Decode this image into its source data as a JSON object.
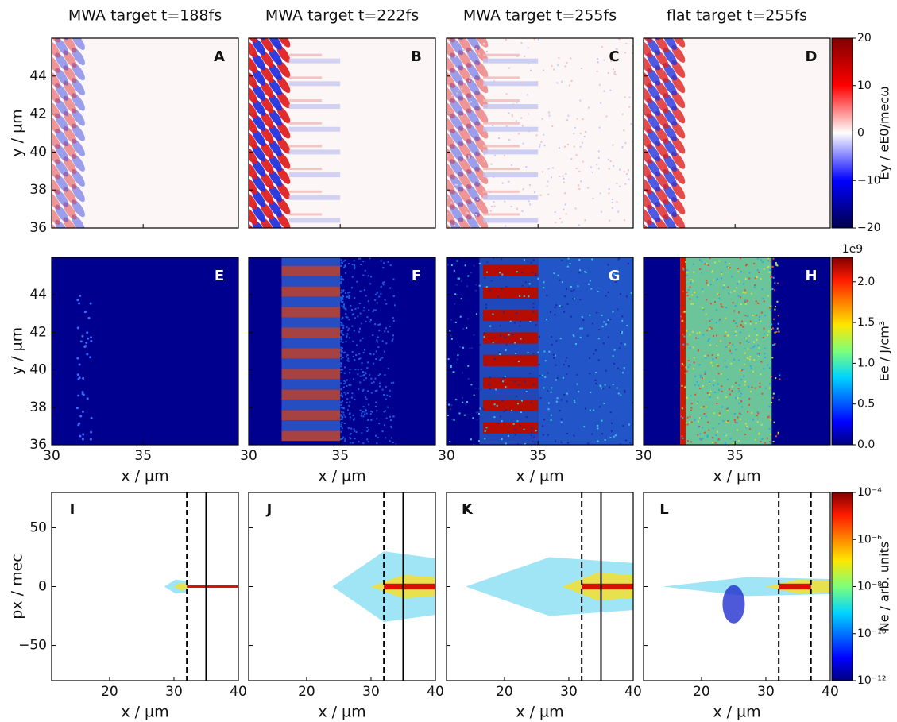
{
  "chart_data": [
    {
      "type": "field-map",
      "ylabel": "y / µm",
      "colorbar_label": "Ey / eE0/mecω",
      "colormap": "seismic",
      "colorbar_lim": [
        -20,
        20
      ],
      "colorbar_ticks": [
        {
          "value": -20,
          "label": "−20"
        },
        {
          "value": -10,
          "label": "−10"
        },
        0,
        10,
        20
      ],
      "xlim": [
        30,
        40.2
      ],
      "xticks": [
        30,
        35
      ],
      "xtick_labels": false,
      "ylim": [
        36,
        46
      ],
      "yticks": [
        36,
        38,
        40,
        42,
        44
      ],
      "panels": [
        {
          "title": "MWA target t=188fs",
          "label": "A"
        },
        {
          "title": "MWA target t=222fs",
          "label": "B"
        },
        {
          "title": "MWA target t=255fs",
          "label": "C"
        },
        {
          "title": "flat target t=255fs",
          "label": "D"
        }
      ]
    },
    {
      "type": "energy-map",
      "ylabel": "y / µm",
      "xlabel": "x / µm",
      "colorbar_label": "Ee / J/cm³",
      "colormap": "jet",
      "colorbar_offset": "1e9",
      "colorbar_lim": [
        0,
        2.3
      ],
      "colorbar_ticks": [
        {
          "value": 0,
          "label": "0.0"
        },
        {
          "value": 0.5,
          "label": "0.5"
        },
        {
          "value": 1,
          "label": "1.0"
        },
        {
          "value": 1.5,
          "label": "1.5"
        },
        {
          "value": 2,
          "label": "2.0"
        }
      ],
      "xlim": [
        30,
        40.2
      ],
      "xticks": [
        30,
        35
      ],
      "xtick_labels": true,
      "ylim": [
        36,
        46
      ],
      "yticks": [
        36,
        38,
        40,
        42,
        44
      ],
      "panels": [
        {
          "label": "E"
        },
        {
          "label": "F"
        },
        {
          "label": "G"
        },
        {
          "label": "H"
        }
      ]
    },
    {
      "type": "phase-space",
      "ylabel": "px / mec",
      "xlabel": "x / µm",
      "colorbar_label": "Ne / arb. units",
      "colormap": "jet",
      "colorbar_log": true,
      "colorbar_lim": [
        1e-12,
        0.0001
      ],
      "colorbar_ticks": [
        {
          "value": 1e-12,
          "label": "10⁻¹²"
        },
        {
          "value": 1e-10,
          "label": "10⁻¹⁰"
        },
        {
          "value": 1e-08,
          "label": "10⁻⁸"
        },
        {
          "value": 1e-06,
          "label": "10⁻⁶"
        },
        {
          "value": 0.0001,
          "label": "10⁻⁴"
        }
      ],
      "xlim": [
        11,
        40
      ],
      "xticks": [
        20,
        30,
        40
      ],
      "xtick_labels": true,
      "ylim": [
        -80,
        80
      ],
      "yticks": [
        {
          "value": -50,
          "label": "−50"
        },
        0,
        50
      ],
      "panels": [
        {
          "label": "I",
          "vlines": [
            {
              "x": 32,
              "style": "dashed"
            },
            {
              "x": 35,
              "style": "solid"
            }
          ]
        },
        {
          "label": "J",
          "vlines": [
            {
              "x": 32,
              "style": "dashed"
            },
            {
              "x": 35,
              "style": "solid"
            }
          ]
        },
        {
          "label": "K",
          "vlines": [
            {
              "x": 32,
              "style": "dashed"
            },
            {
              "x": 35,
              "style": "solid"
            }
          ]
        },
        {
          "label": "L",
          "vlines": [
            {
              "x": 32,
              "style": "dashed"
            },
            {
              "x": 37,
              "style": "dashed"
            }
          ]
        }
      ]
    }
  ]
}
